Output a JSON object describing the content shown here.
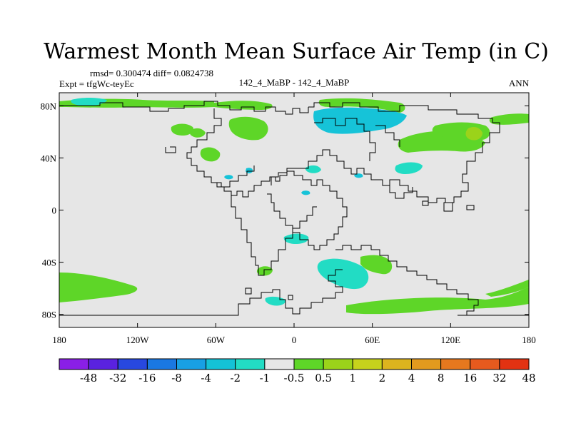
{
  "title": "Warmest Month Mean Surface Air Temp (in C)",
  "stats": "rmsd= 0.300474 diff= 0.0824738",
  "expt": "Expt = tfgWc-teyEc",
  "center_label": "142_4_MaBP - 142_4_MaBP",
  "season": "ANN",
  "colors": {
    "background_field": "#e6e6e6",
    "green": "#5ed628",
    "yellowgreen": "#9bd31a",
    "cyan": "#22dcc4",
    "teal": "#16c3d8",
    "coast": "#000000"
  },
  "axes": {
    "lon_ticks": [
      {
        "value": -180,
        "label": "180"
      },
      {
        "value": -120,
        "label": "120W"
      },
      {
        "value": -60,
        "label": "60W"
      },
      {
        "value": 0,
        "label": "0"
      },
      {
        "value": 60,
        "label": "60E"
      },
      {
        "value": 120,
        "label": "120E"
      },
      {
        "value": 180,
        "label": "180"
      }
    ],
    "lat_ticks": [
      {
        "value": 80,
        "label": "80N"
      },
      {
        "value": 40,
        "label": "40N"
      },
      {
        "value": 0,
        "label": "0"
      },
      {
        "value": -40,
        "label": "40S"
      },
      {
        "value": -80,
        "label": "80S"
      }
    ],
    "lon_range": [
      -180,
      180
    ],
    "lat_range": [
      -90,
      90
    ]
  },
  "colorbar": {
    "colors": [
      "#8a1fe6",
      "#5a22e0",
      "#2848e0",
      "#1a78e2",
      "#18a0e4",
      "#14c2d6",
      "#22dcc4",
      "#e6e6e6",
      "#5ed628",
      "#9bd31a",
      "#c6d21c",
      "#dcb41e",
      "#e29a1e",
      "#e6781e",
      "#e65a1e",
      "#e23212"
    ],
    "labels": [
      "-48",
      "-32",
      "-16",
      "-8",
      "-4",
      "-2",
      "-1",
      "-0.5",
      "0.5",
      "1",
      "2",
      "4",
      "8",
      "16",
      "32",
      "48"
    ]
  }
}
